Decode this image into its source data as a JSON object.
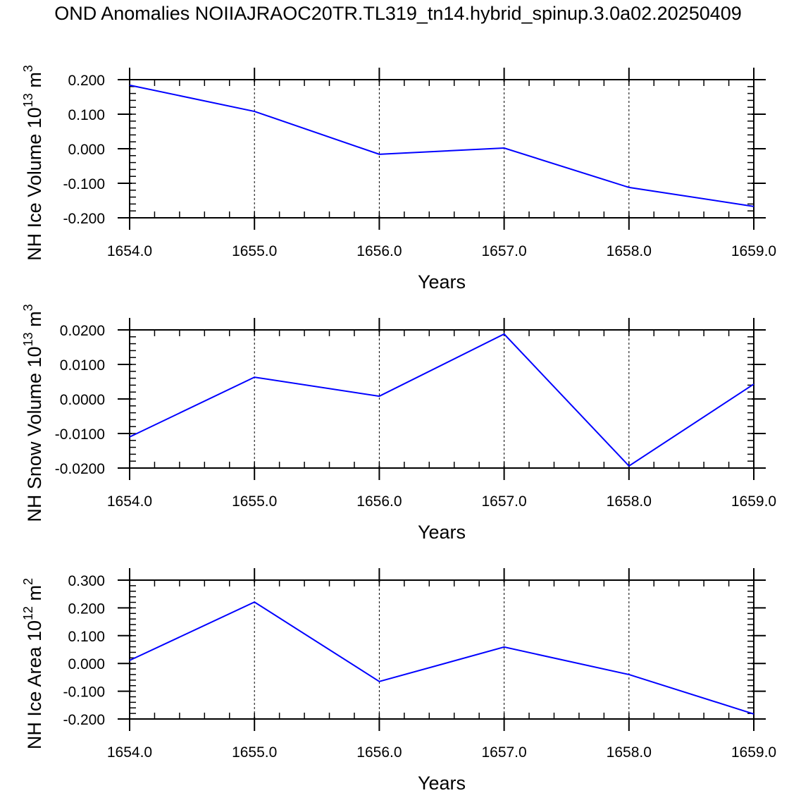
{
  "chart_data": {
    "title": "OND Anomalies NOIIAJRAOC20TR.TL319_tn14.hybrid_spinup.3.0a02.20250409",
    "line_color": "#0000ff",
    "panels": [
      {
        "type": "line",
        "ylabel": "NH Ice Volume 10",
        "ylabel_exp": "13",
        "ylabel_unit": "m",
        "ylabel_unit_exp": "3",
        "xlabel": "Years",
        "x": [
          1654,
          1655,
          1656,
          1657,
          1658,
          1659
        ],
        "xticklabels": [
          "1654.0",
          "1655.0",
          "1656.0",
          "1657.0",
          "1658.0",
          "1659.0"
        ],
        "y": [
          0.184,
          0.108,
          -0.016,
          0.002,
          -0.112,
          -0.167
        ],
        "ylim": [
          -0.2,
          0.2
        ],
        "yticks": [
          -0.2,
          -0.1,
          0.0,
          0.1,
          0.2
        ],
        "yticklabels": [
          "-0.200",
          "-0.100",
          "0.000",
          "0.100",
          "0.200"
        ],
        "yminor": 0.02
      },
      {
        "type": "line",
        "ylabel": "NH Snow Volume 10",
        "ylabel_exp": "13",
        "ylabel_unit": "m",
        "ylabel_unit_exp": "3",
        "xlabel": "Years",
        "x": [
          1654,
          1655,
          1656,
          1657,
          1658,
          1659
        ],
        "xticklabels": [
          "1654.0",
          "1655.0",
          "1656.0",
          "1657.0",
          "1658.0",
          "1659.0"
        ],
        "y": [
          -0.011,
          0.0063,
          0.0008,
          0.0188,
          -0.0194,
          0.0043
        ],
        "ylim": [
          -0.02,
          0.02
        ],
        "yticks": [
          -0.02,
          -0.01,
          0.0,
          0.01,
          0.02
        ],
        "yticklabels": [
          "-0.0200",
          "-0.0100",
          "0.0000",
          "0.0100",
          "0.0200"
        ],
        "yminor": 0.002
      },
      {
        "type": "line",
        "ylabel": "NH Ice Area 10",
        "ylabel_exp": "12",
        "ylabel_unit": "m",
        "ylabel_unit_exp": "2",
        "xlabel": "Years",
        "x": [
          1654,
          1655,
          1656,
          1657,
          1658,
          1659
        ],
        "xticklabels": [
          "1654.0",
          "1655.0",
          "1656.0",
          "1657.0",
          "1658.0",
          "1659.0"
        ],
        "y": [
          0.011,
          0.221,
          -0.065,
          0.059,
          -0.04,
          -0.182
        ],
        "ylim": [
          -0.2,
          0.3
        ],
        "yticks": [
          -0.2,
          -0.1,
          0.0,
          0.1,
          0.2,
          0.3
        ],
        "yticklabels": [
          "-0.200",
          "-0.100",
          "0.000",
          "0.100",
          "0.200",
          "0.300"
        ],
        "yminor": 0.02
      }
    ]
  }
}
